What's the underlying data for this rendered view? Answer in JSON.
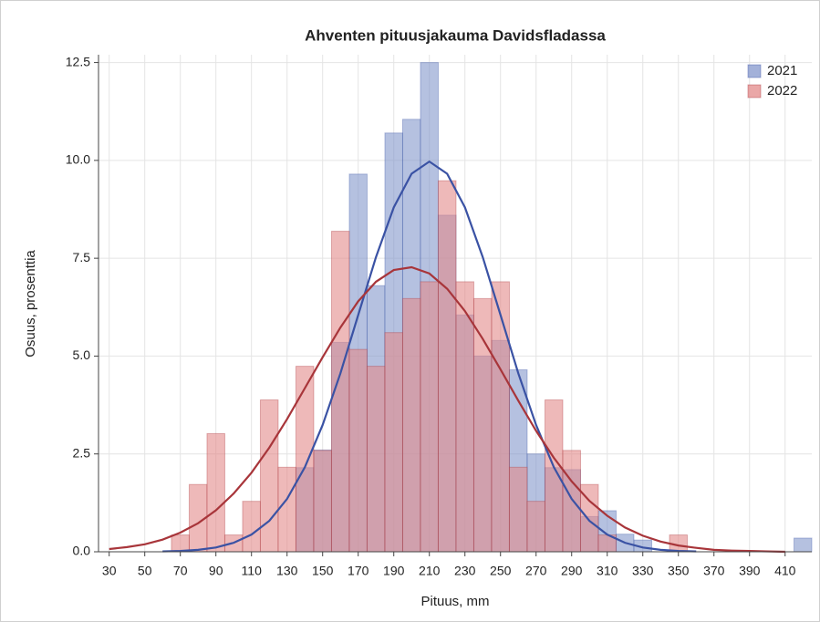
{
  "chart_data": {
    "type": "histogram",
    "title": "Ahventen pituusjakauma Davidsfladassa",
    "x_label": "Pituus, mm",
    "y_label": "Osuus, prosenttia",
    "bins": [
      65,
      75,
      85,
      95,
      105,
      115,
      125,
      135,
      145,
      155,
      165,
      175,
      185,
      195,
      205,
      215,
      225,
      235,
      245,
      255,
      265,
      275,
      285,
      295,
      305,
      315,
      325,
      335,
      345,
      355,
      365,
      375,
      385,
      395,
      405,
      415,
      425
    ],
    "series": [
      {
        "name": "2021",
        "color": "#8497cc",
        "curve_color": "#3a52a4",
        "values": [
          0,
          0,
          0,
          0,
          0,
          0,
          0,
          2.15,
          2.6,
          5.35,
          9.65,
          6.8,
          10.7,
          11.05,
          12.5,
          8.6,
          6.05,
          5.0,
          5.4,
          4.65,
          2.5,
          2.15,
          2.1,
          0.9,
          1.05,
          0.45,
          0.3,
          0,
          0,
          0,
          0,
          0,
          0,
          0,
          0,
          0.35
        ],
        "curve": {
          "x": [
            60,
            70,
            80,
            90,
            100,
            110,
            120,
            130,
            140,
            150,
            160,
            170,
            180,
            190,
            200,
            210,
            220,
            230,
            240,
            250,
            260,
            270,
            280,
            290,
            300,
            310,
            320,
            330,
            340,
            350,
            360
          ],
          "values": [
            0.01,
            0.02,
            0.05,
            0.11,
            0.23,
            0.44,
            0.79,
            1.35,
            2.16,
            3.24,
            4.56,
            6.05,
            7.53,
            8.8,
            9.66,
            9.97,
            9.66,
            8.8,
            7.53,
            6.05,
            4.56,
            3.24,
            2.16,
            1.35,
            0.79,
            0.44,
            0.23,
            0.11,
            0.05,
            0.02,
            0.01
          ]
        }
      },
      {
        "name": "2022",
        "color": "#e38a8a",
        "curve_color": "#a8353a",
        "values": [
          0.43,
          1.72,
          3.02,
          0.43,
          1.29,
          3.88,
          2.16,
          4.74,
          2.59,
          8.19,
          5.17,
          4.74,
          5.6,
          6.47,
          6.9,
          9.48,
          6.9,
          6.47,
          6.9,
          2.16,
          1.29,
          3.88,
          2.59,
          1.72,
          0.43,
          0,
          0,
          0,
          0.43,
          0,
          0,
          0,
          0,
          0,
          0,
          0
        ],
        "curve": {
          "x": [
            30,
            40,
            50,
            60,
            70,
            80,
            90,
            100,
            110,
            120,
            130,
            140,
            150,
            160,
            170,
            180,
            190,
            200,
            210,
            220,
            230,
            240,
            250,
            260,
            270,
            280,
            290,
            300,
            310,
            320,
            330,
            340,
            350,
            360,
            370,
            380,
            390,
            400,
            410
          ],
          "values": [
            0.07,
            0.12,
            0.19,
            0.31,
            0.49,
            0.73,
            1.06,
            1.49,
            2.02,
            2.66,
            3.39,
            4.18,
            4.97,
            5.73,
            6.4,
            6.9,
            7.2,
            7.27,
            7.11,
            6.72,
            6.15,
            5.44,
            4.66,
            3.86,
            3.09,
            2.4,
            1.8,
            1.3,
            0.92,
            0.62,
            0.41,
            0.26,
            0.16,
            0.1,
            0.05,
            0.03,
            0.02,
            0.01,
            0
          ]
        }
      }
    ],
    "xlim": [
      24,
      425
    ],
    "ylim": [
      0,
      12.7
    ],
    "xticks": [
      30,
      50,
      70,
      90,
      110,
      130,
      150,
      170,
      190,
      210,
      230,
      250,
      270,
      290,
      310,
      330,
      350,
      370,
      390,
      410
    ],
    "yticks": [
      {
        "value": 0,
        "label": "0.0"
      },
      2.5,
      {
        "value": 5,
        "label": "5.0"
      },
      7.5,
      {
        "value": 10,
        "label": "10.0"
      },
      12.5
    ],
    "grid": true,
    "legend": "top-right"
  }
}
